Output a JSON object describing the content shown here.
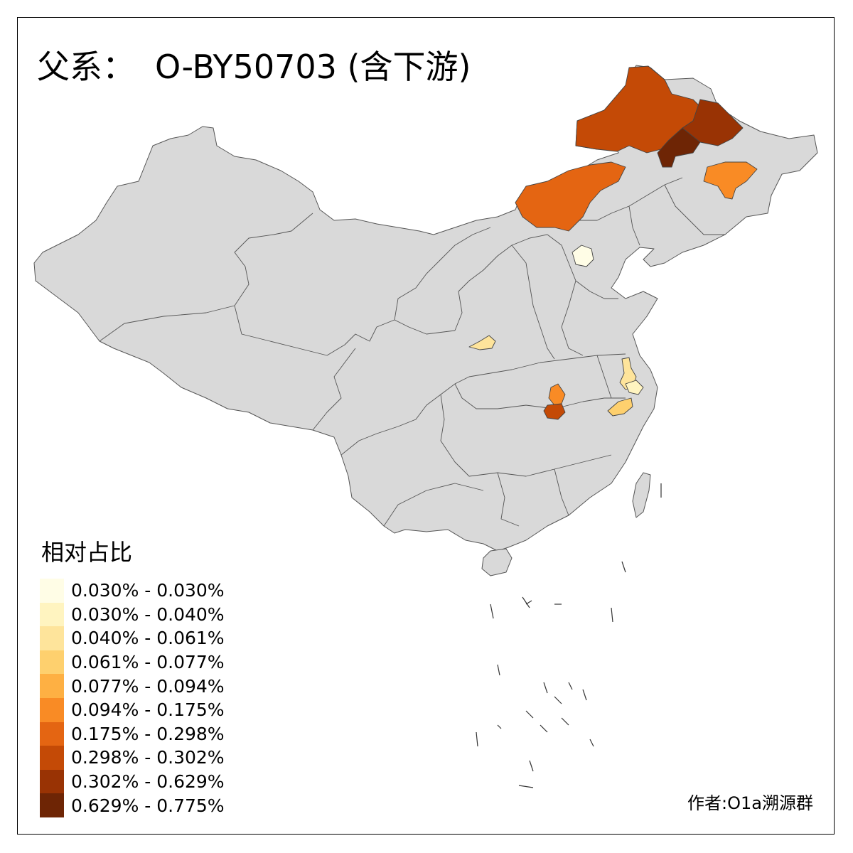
{
  "title": {
    "prefix": "父系：",
    "text": "O-BY50703 (含下游)"
  },
  "legend": {
    "title": "相对占比",
    "items": [
      {
        "label": "0.030% - 0.030%",
        "color": "#fffde6"
      },
      {
        "label": "0.030% - 0.040%",
        "color": "#fff4c0"
      },
      {
        "label": "0.040% - 0.061%",
        "color": "#fee49b"
      },
      {
        "label": "0.061% - 0.077%",
        "color": "#fed06e"
      },
      {
        "label": "0.077% - 0.094%",
        "color": "#feb043"
      },
      {
        "label": "0.094% - 0.175%",
        "color": "#f98b25"
      },
      {
        "label": "0.175% - 0.298%",
        "color": "#e46512"
      },
      {
        "label": "0.298% - 0.302%",
        "color": "#c44a06"
      },
      {
        "label": "0.302% - 0.629%",
        "color": "#993304"
      },
      {
        "label": "0.629% - 0.775%",
        "color": "#6e2505"
      }
    ]
  },
  "credit": "作者:O1a溯源群",
  "colors": {
    "land": "#d9d9d9",
    "border": "#333333",
    "background": "#ffffff"
  }
}
